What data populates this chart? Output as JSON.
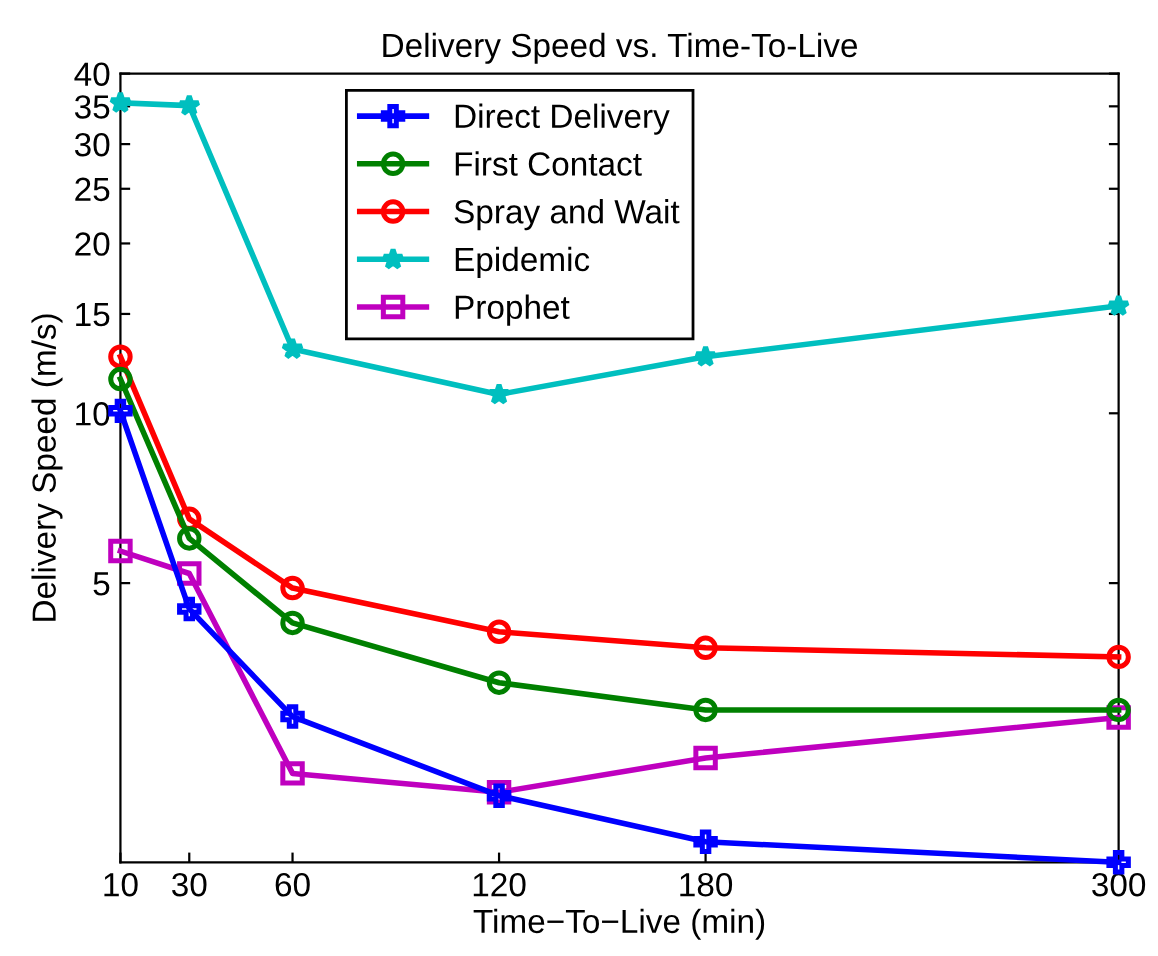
{
  "chart_data": {
    "type": "line",
    "title": "Delivery Speed vs. Time-To-Live",
    "xlabel": "Time−To−Live (min)",
    "ylabel": "Delivery Speed (m/s)",
    "x": [
      10,
      30,
      60,
      120,
      180,
      300
    ],
    "series": [
      {
        "name": "Direct Delivery",
        "color": "#0000ff",
        "marker": "cross",
        "values": [
          10.1,
          4.5,
          2.9,
          2.1,
          1.74,
          1.6
        ]
      },
      {
        "name": "First Contact",
        "color": "#008000",
        "marker": "circle",
        "values": [
          11.5,
          6.0,
          4.25,
          3.33,
          2.98,
          2.98
        ]
      },
      {
        "name": "Spray and Wait",
        "color": "#ff0000",
        "marker": "circle",
        "values": [
          12.6,
          6.5,
          4.9,
          4.1,
          3.84,
          3.7
        ]
      },
      {
        "name": "Epidemic",
        "color": "#00bfbf",
        "marker": "star",
        "values": [
          35.5,
          35.1,
          13.0,
          10.8,
          12.6,
          15.5
        ]
      },
      {
        "name": "Prophet",
        "color": "#bf00bf",
        "marker": "square",
        "values": [
          5.7,
          5.2,
          2.3,
          2.13,
          2.45,
          2.89
        ]
      }
    ],
    "log": "y",
    "xlim": [
      10,
      300
    ],
    "xticks": [
      10,
      30,
      60,
      120,
      180,
      300
    ],
    "ylim": [
      1.6,
      40
    ],
    "yticks": [
      5,
      10,
      15,
      20,
      25,
      30,
      35,
      40
    ],
    "grid": false,
    "legend": "top",
    "line_style": "solid"
  }
}
